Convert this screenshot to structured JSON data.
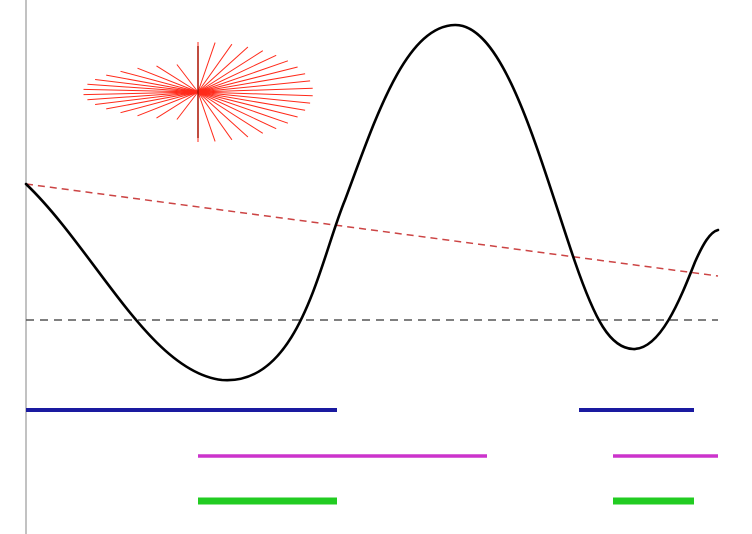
{
  "colors": {
    "background": "#ffffff",
    "axis": "#9a9a9a",
    "curve": "#000000",
    "zero_line": "#555555",
    "trend_line": "#cc4444",
    "fan": "#ff2a1a",
    "interval_blue": "#1a1aa0",
    "interval_magenta": "#cc33cc",
    "interval_green": "#22cc22"
  },
  "diagram": {
    "vertical_axis": {
      "present": true
    },
    "zero_line": {
      "style": "dashed"
    },
    "trend_line": {
      "style": "dashed"
    },
    "curve": {
      "shape": "smooth-oscillation"
    },
    "fan": {
      "shape": "radial-line-bundle"
    },
    "interval_rows": [
      {
        "name": "blue",
        "segments": 2
      },
      {
        "name": "magenta",
        "segments": 2
      },
      {
        "name": "green",
        "segments": 2
      }
    ]
  }
}
